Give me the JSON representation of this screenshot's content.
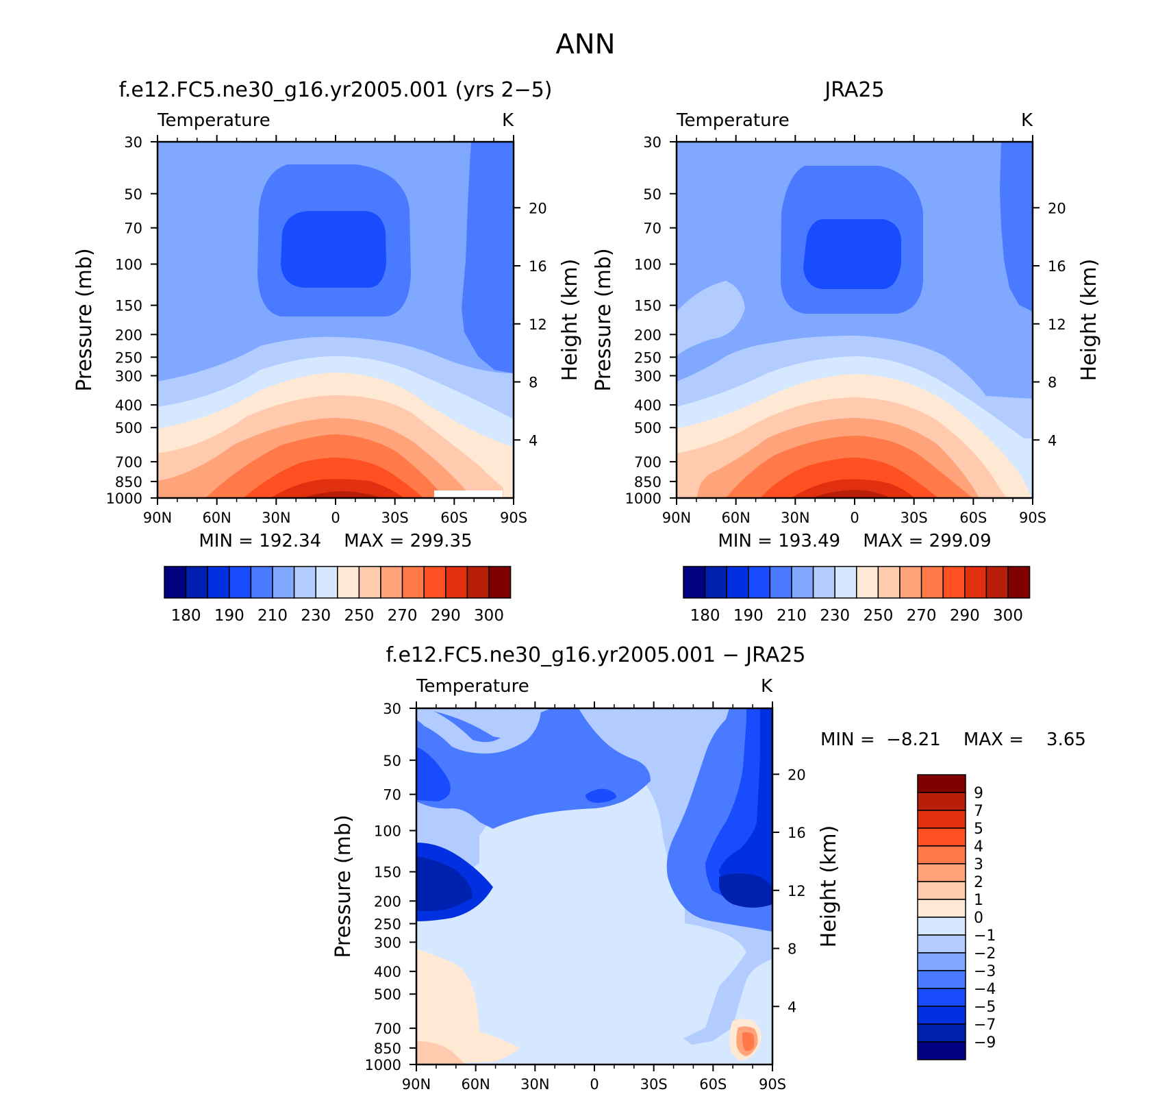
{
  "title": "ANN",
  "ticks": {
    "pressure": [
      "30",
      "50",
      "70",
      "100",
      "150",
      "200",
      "250",
      "300",
      "400",
      "500",
      "700",
      "850",
      "1000"
    ],
    "height": [
      "20",
      "16",
      "12",
      "8",
      "4"
    ],
    "latitude": [
      "90N",
      "60N",
      "30N",
      "0",
      "30S",
      "60S",
      "90S"
    ]
  },
  "labels": {
    "left_axis": "Pressure (mb)",
    "right_axis": "Height (km)",
    "variable": "Temperature",
    "units": "K"
  },
  "colors": {
    "abs_levels": [
      "#000080",
      "#0020b0",
      "#0030e0",
      "#1a4cff",
      "#4a7aff",
      "#80a8ff",
      "#b2ccff",
      "#d6e8ff",
      "#ffe8d4",
      "#ffcaae",
      "#ffa47a",
      "#ff7a48",
      "#ff5022",
      "#e03010",
      "#b81e08",
      "#800000"
    ],
    "diff_levels": [
      "#000080",
      "#0020b0",
      "#0030e0",
      "#1a4cff",
      "#4a7aff",
      "#80a8ff",
      "#b2ccff",
      "#d6e8ff",
      "#ffe8d4",
      "#ffcaae",
      "#ffa47a",
      "#ff7a48",
      "#ff5022",
      "#e03010",
      "#b81e08",
      "#800000"
    ]
  },
  "panels": {
    "model": {
      "title": "f.e12.FC5.ne30_g16.yr2005.001 (yrs 2−5)",
      "min_label": "MIN",
      "min_value": "192.34",
      "max_label": "MAX",
      "max_value": "299.35",
      "colorbar_ticks": [
        "180",
        "190",
        "210",
        "230",
        "250",
        "270",
        "290",
        "300"
      ]
    },
    "obs": {
      "title": "JRA25",
      "min_label": "MIN",
      "min_value": "193.49",
      "max_label": "MAX",
      "max_value": "299.09",
      "colorbar_ticks": [
        "180",
        "190",
        "210",
        "230",
        "250",
        "270",
        "290",
        "300"
      ]
    },
    "diff": {
      "title": "f.e12.FC5.ne30_g16.yr2005.001 − JRA25",
      "min_label": "MIN",
      "min_value": "−8.21",
      "max_label": "MAX",
      "max_value": "3.65",
      "colorbar_ticks": [
        "9",
        "7",
        "5",
        "4",
        "3",
        "2",
        "1",
        "0",
        "−1",
        "−2",
        "−3",
        "−4",
        "−5",
        "−7",
        "−9"
      ]
    }
  },
  "chart_data": [
    {
      "type": "heatmap",
      "title": "f.e12.FC5.ne30_g16.yr2005.001 (yrs 2−5)",
      "subtitle": "Temperature",
      "units": "K",
      "ylabel": "Pressure (mb)",
      "y2label": "Height (km)",
      "x": [
        "90N",
        "60N",
        "30N",
        "0",
        "30S",
        "60S",
        "90S"
      ],
      "y": [
        30,
        50,
        70,
        100,
        150,
        200,
        250,
        300,
        400,
        500,
        700,
        850,
        1000
      ],
      "min": 192.34,
      "max": 299.35,
      "levels": [
        180,
        185,
        190,
        200,
        210,
        220,
        230,
        240,
        250,
        260,
        270,
        280,
        290,
        295,
        300
      ]
    },
    {
      "type": "heatmap",
      "title": "JRA25",
      "subtitle": "Temperature",
      "units": "K",
      "ylabel": "Pressure (mb)",
      "y2label": "Height (km)",
      "x": [
        "90N",
        "60N",
        "30N",
        "0",
        "30S",
        "60S",
        "90S"
      ],
      "y": [
        30,
        50,
        70,
        100,
        150,
        200,
        250,
        300,
        400,
        500,
        700,
        850,
        1000
      ],
      "min": 193.49,
      "max": 299.09,
      "levels": [
        180,
        185,
        190,
        200,
        210,
        220,
        230,
        240,
        250,
        260,
        270,
        280,
        290,
        295,
        300
      ]
    },
    {
      "type": "heatmap",
      "title": "f.e12.FC5.ne30_g16.yr2005.001 − JRA25",
      "subtitle": "Temperature",
      "units": "K",
      "ylabel": "Pressure (mb)",
      "y2label": "Height (km)",
      "x": [
        "90N",
        "60N",
        "30N",
        "0",
        "30S",
        "60S",
        "90S"
      ],
      "y": [
        30,
        50,
        70,
        100,
        150,
        200,
        250,
        300,
        400,
        500,
        700,
        850,
        1000
      ],
      "min": -8.21,
      "max": 3.65,
      "levels": [
        -9,
        -7,
        -5,
        -4,
        -3,
        -2,
        -1,
        0,
        1,
        2,
        3,
        4,
        5,
        7,
        9
      ]
    }
  ]
}
